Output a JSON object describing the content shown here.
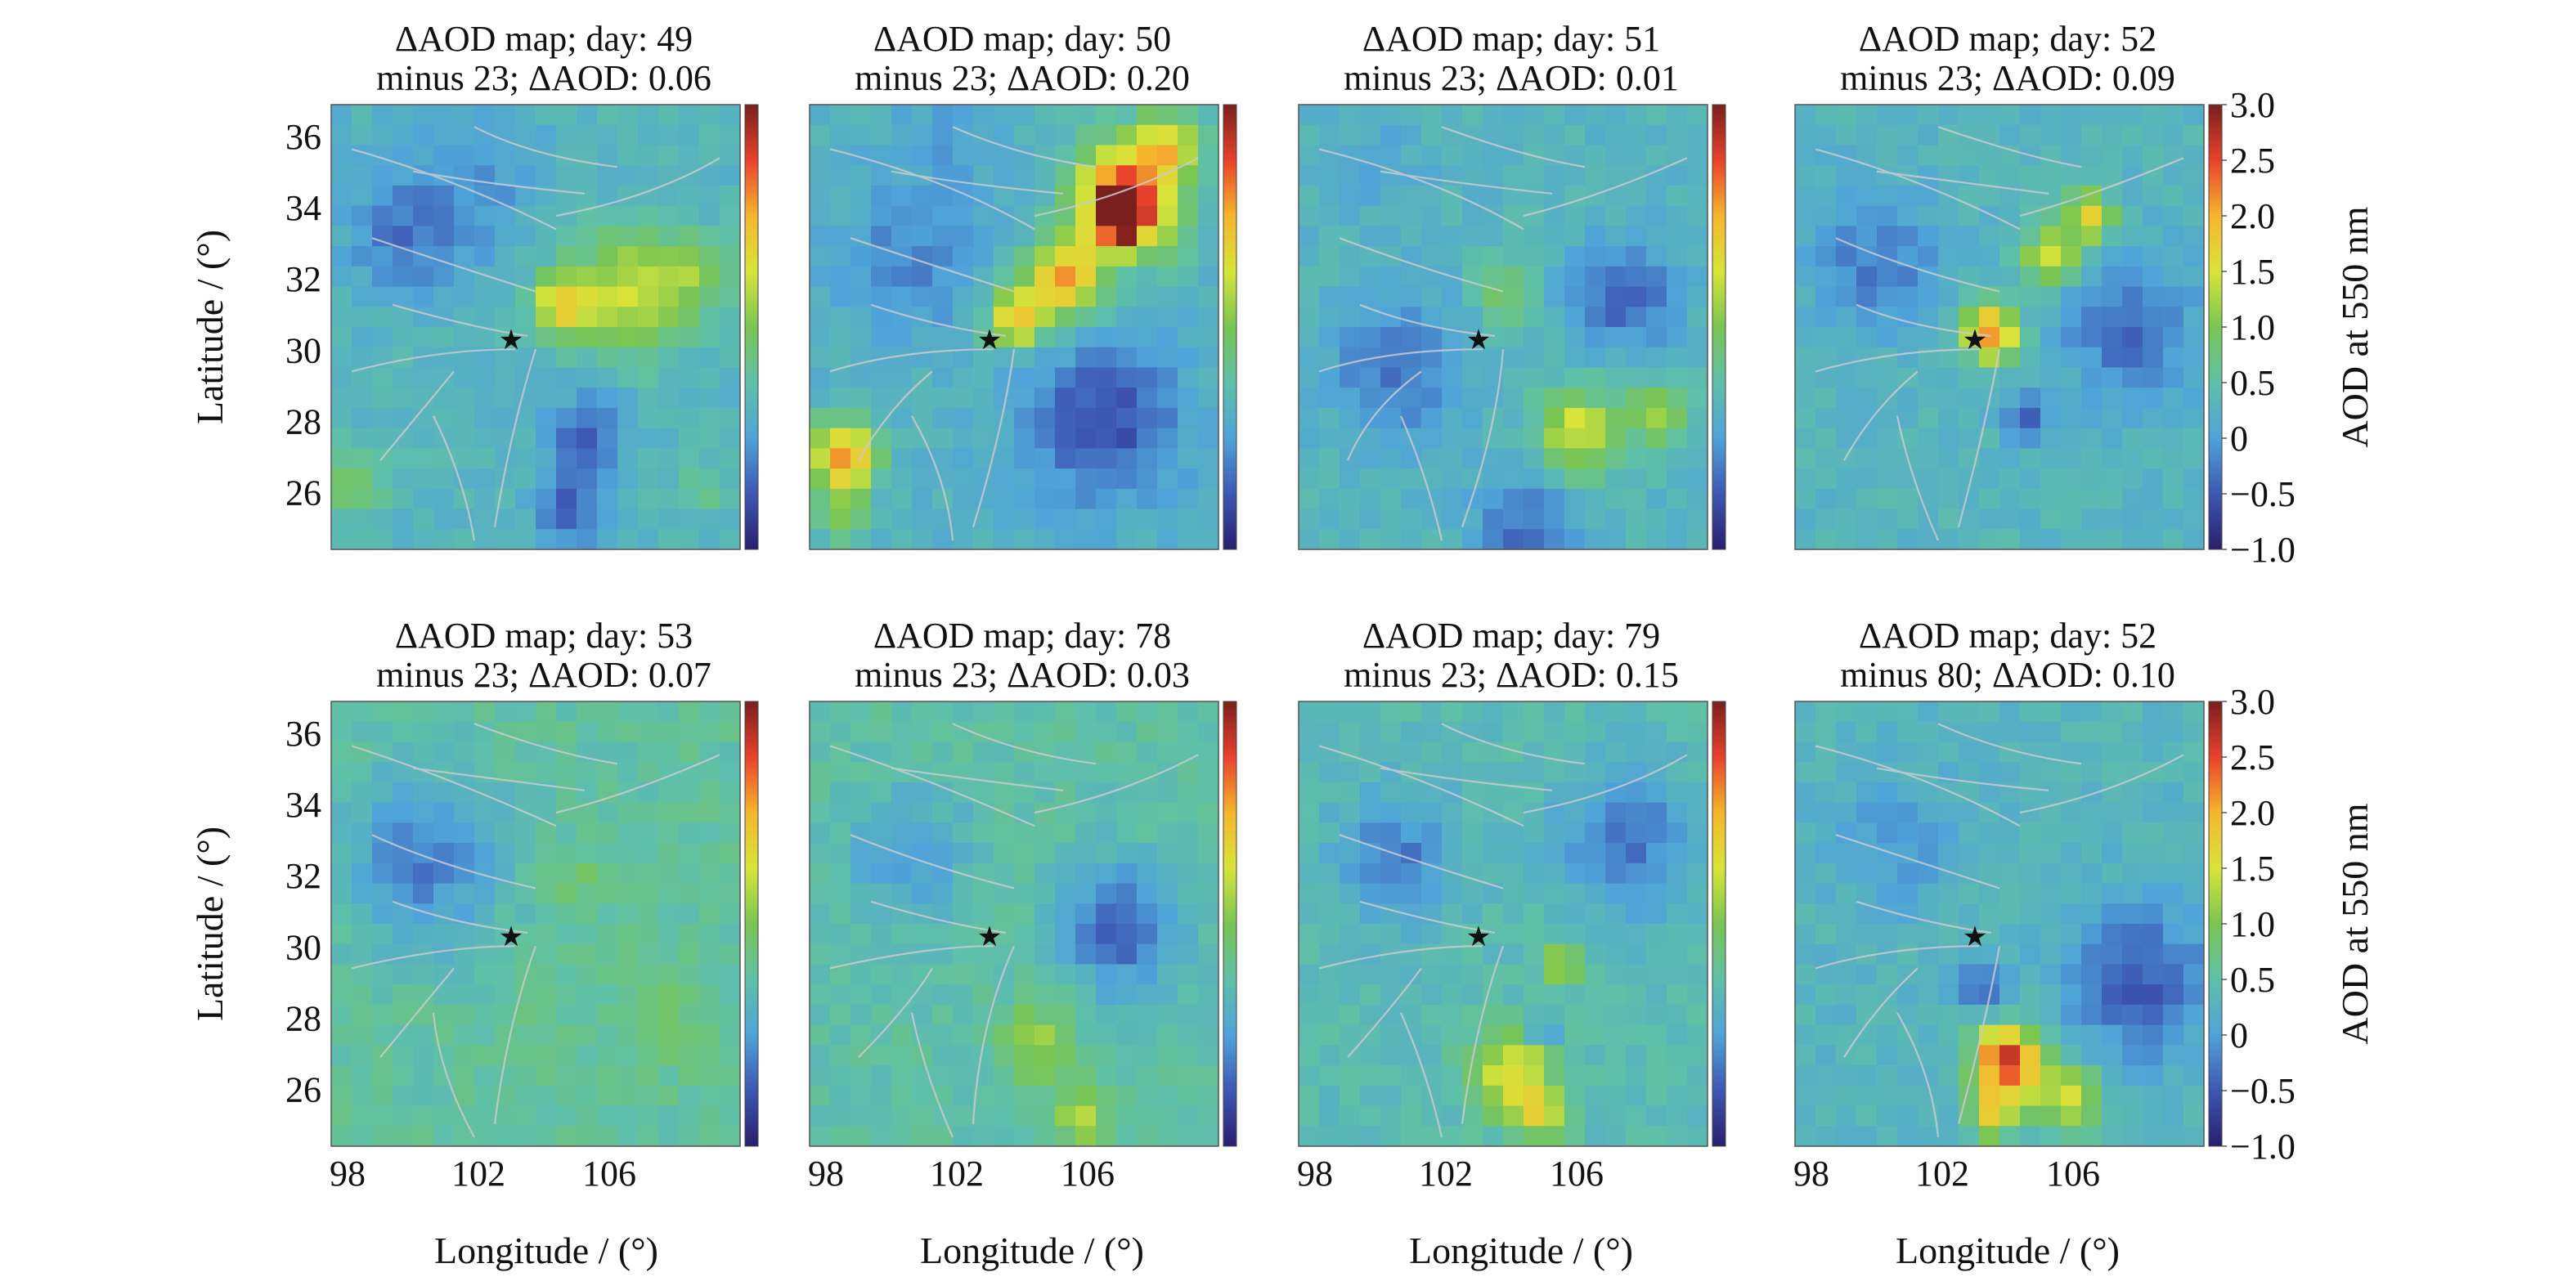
{
  "figure": {
    "ylabel": "Latitude / (°)",
    "xlabel": "Longitude / (°)",
    "colorbar_label": "AOD at 550 nm"
  },
  "chart_data": {
    "type": "heatmap",
    "xlim": [
      97.5,
      110
    ],
    "ylim": [
      24.4,
      36.9
    ],
    "xticks": [
      98,
      102,
      106
    ],
    "yticks": [
      26,
      28,
      30,
      32,
      34,
      36
    ],
    "epicenter": {
      "lon": 103.0,
      "lat": 30.3,
      "marker": "★"
    },
    "colorbar": {
      "range": [
        -1.0,
        3.0
      ],
      "ticks": [
        "3.0",
        "2.5",
        "2.0",
        "1.5",
        "1.0",
        "0.5",
        "0",
        "−0.5",
        "−1.0"
      ],
      "colormap": [
        "#2a1e6e",
        "#3d57b3",
        "#4fa3d9",
        "#5fc0a8",
        "#79c553",
        "#d8e43a",
        "#f5b62e",
        "#e8422c",
        "#7a1f1c"
      ]
    },
    "panels": [
      {
        "title_line1": "ΔAOD map; day: 49",
        "title_line2": "minus 23; ΔAOD: 0.06",
        "background": 0.3,
        "blobs": [
          {
            "lon": 106.5,
            "lat": 31.6,
            "r": 1.7,
            "v": 1.35
          },
          {
            "lon": 104.5,
            "lat": 31.3,
            "r": 0.9,
            "v": 1.6
          },
          {
            "lon": 108.5,
            "lat": 32.0,
            "r": 1.2,
            "v": 0.9
          },
          {
            "lon": 101.5,
            "lat": 34.5,
            "r": 2.3,
            "v": -0.1
          },
          {
            "lon": 99.5,
            "lat": 33.0,
            "r": 1.6,
            "v": -0.15
          },
          {
            "lon": 105.3,
            "lat": 27.5,
            "r": 1.2,
            "v": -0.45
          },
          {
            "lon": 104.8,
            "lat": 25.5,
            "r": 1.0,
            "v": -0.4
          },
          {
            "lon": 98.2,
            "lat": 26.2,
            "r": 0.9,
            "v": 0.9
          },
          {
            "lon": 108.8,
            "lat": 26.2,
            "r": 0.8,
            "v": 0.7
          }
        ]
      },
      {
        "title_line1": "ΔAOD map; day: 50",
        "title_line2": "minus 23; ΔAOD: 0.20",
        "background": 0.25,
        "blobs": [
          {
            "lon": 107.2,
            "lat": 34.3,
            "r": 1.6,
            "v": 2.45
          },
          {
            "lon": 107.0,
            "lat": 33.8,
            "r": 0.7,
            "v": 2.9
          },
          {
            "lon": 105.3,
            "lat": 32.0,
            "r": 1.1,
            "v": 2.0
          },
          {
            "lon": 103.8,
            "lat": 30.9,
            "r": 0.8,
            "v": 2.0
          },
          {
            "lon": 108.5,
            "lat": 35.8,
            "r": 0.9,
            "v": 1.4
          },
          {
            "lon": 98.5,
            "lat": 27.0,
            "r": 1.0,
            "v": 2.1
          },
          {
            "lon": 98.5,
            "lat": 25.3,
            "r": 0.8,
            "v": 0.8
          },
          {
            "lon": 106.5,
            "lat": 28.0,
            "r": 2.2,
            "v": -0.6
          },
          {
            "lon": 100.5,
            "lat": 32.5,
            "r": 2.0,
            "v": -0.2
          },
          {
            "lon": 101.5,
            "lat": 35.8,
            "r": 1.6,
            "v": 0.05
          }
        ]
      },
      {
        "title_line1": "ΔAOD map; day: 51",
        "title_line2": "minus 23; ΔAOD: 0.01",
        "background": 0.3,
        "blobs": [
          {
            "lon": 106.0,
            "lat": 27.7,
            "r": 1.2,
            "v": 1.5
          },
          {
            "lon": 108.5,
            "lat": 28.2,
            "r": 0.9,
            "v": 1.3
          },
          {
            "lon": 103.8,
            "lat": 31.5,
            "r": 0.9,
            "v": 0.9
          },
          {
            "lon": 107.5,
            "lat": 31.5,
            "r": 1.6,
            "v": -0.4
          },
          {
            "lon": 100.5,
            "lat": 29.5,
            "r": 2.0,
            "v": -0.3
          },
          {
            "lon": 104.5,
            "lat": 25.0,
            "r": 1.5,
            "v": -0.35
          },
          {
            "lon": 100.0,
            "lat": 35.3,
            "r": 1.6,
            "v": 0.1
          }
        ]
      },
      {
        "title_line1": "ΔAOD map; day: 52",
        "title_line2": "minus 23; ΔAOD: 0.09",
        "background": 0.3,
        "blobs": [
          {
            "lon": 103.5,
            "lat": 30.5,
            "r": 0.8,
            "v": 2.3
          },
          {
            "lon": 105.3,
            "lat": 32.6,
            "r": 0.8,
            "v": 1.6
          },
          {
            "lon": 106.5,
            "lat": 33.7,
            "r": 0.7,
            "v": 1.8
          },
          {
            "lon": 107.8,
            "lat": 30.5,
            "r": 2.0,
            "v": -0.4
          },
          {
            "lon": 100.0,
            "lat": 32.5,
            "r": 2.0,
            "v": -0.25
          },
          {
            "lon": 104.6,
            "lat": 28.0,
            "r": 0.7,
            "v": -0.5
          }
        ]
      },
      {
        "title_line1": "ΔAOD map; day: 53",
        "title_line2": "minus 23; ΔAOD: 0.07",
        "background": 0.55,
        "blobs": [
          {
            "lon": 100.3,
            "lat": 32.5,
            "r": 2.4,
            "v": -0.25
          },
          {
            "lon": 105.0,
            "lat": 31.8,
            "r": 1.0,
            "v": 0.85
          },
          {
            "lon": 107.5,
            "lat": 28.0,
            "r": 1.5,
            "v": 0.85
          },
          {
            "lon": 103.5,
            "lat": 27.0,
            "r": 1.2,
            "v": 0.75
          }
        ]
      },
      {
        "title_line1": "ΔAOD map; day: 78",
        "title_line2": "minus 23; ΔAOD: 0.03",
        "background": 0.5,
        "blobs": [
          {
            "lon": 107.0,
            "lat": 30.5,
            "r": 1.8,
            "v": -0.4
          },
          {
            "lon": 100.5,
            "lat": 32.5,
            "r": 1.8,
            "v": -0.05
          },
          {
            "lon": 104.5,
            "lat": 27.3,
            "r": 1.1,
            "v": 1.2
          },
          {
            "lon": 105.8,
            "lat": 25.2,
            "r": 0.8,
            "v": 1.3
          }
        ]
      },
      {
        "title_line1": "ΔAOD map; day: 79",
        "title_line2": "minus 23; ΔAOD: 0.15",
        "background": 0.4,
        "blobs": [
          {
            "lon": 104.0,
            "lat": 26.5,
            "r": 1.2,
            "v": 1.6
          },
          {
            "lon": 105.5,
            "lat": 29.5,
            "r": 0.6,
            "v": 1.5
          },
          {
            "lon": 104.8,
            "lat": 25.3,
            "r": 0.8,
            "v": 1.4
          },
          {
            "lon": 105.0,
            "lat": 27.7,
            "r": 0.4,
            "v": -0.6
          },
          {
            "lon": 107.5,
            "lat": 33.0,
            "r": 2.0,
            "v": -0.3
          },
          {
            "lon": 100.5,
            "lat": 32.5,
            "r": 1.8,
            "v": -0.25
          }
        ]
      },
      {
        "title_line1": "ΔAOD map; day: 52",
        "title_line2": "minus 80; ΔAOD: 0.10",
        "background": 0.3,
        "blobs": [
          {
            "lon": 104.0,
            "lat": 26.8,
            "r": 1.0,
            "v": 2.7
          },
          {
            "lon": 105.8,
            "lat": 25.8,
            "r": 1.0,
            "v": 1.5
          },
          {
            "lon": 103.5,
            "lat": 25.3,
            "r": 0.7,
            "v": 1.6
          },
          {
            "lon": 108.0,
            "lat": 29.0,
            "r": 2.2,
            "v": -0.45
          },
          {
            "lon": 103.2,
            "lat": 28.8,
            "r": 0.7,
            "v": -0.5
          },
          {
            "lon": 100.5,
            "lat": 33.0,
            "r": 1.8,
            "v": -0.1
          }
        ]
      }
    ]
  }
}
